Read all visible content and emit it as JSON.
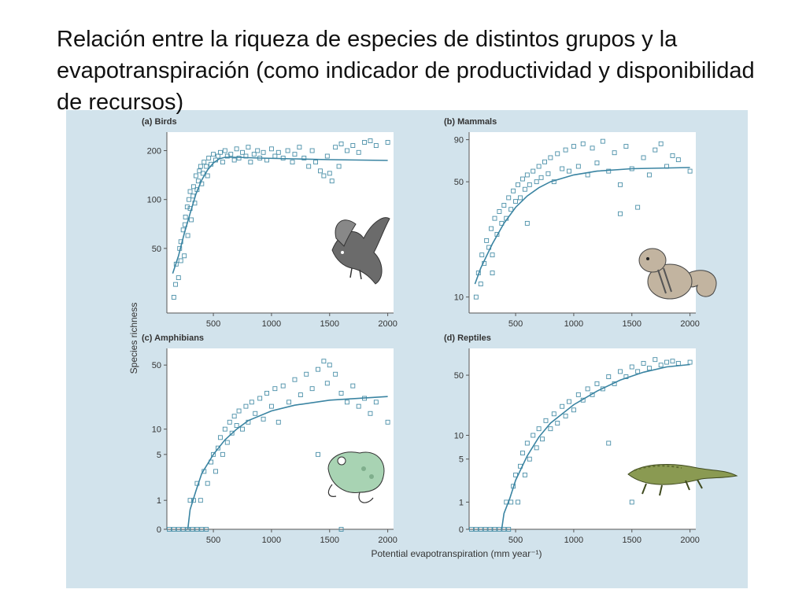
{
  "slide": {
    "title": "Relación entre la riqueza de especies de distintos grupos y la evapotranspiración (como indicador de productividad y disponibilidad de recursos)"
  },
  "figure": {
    "ylabel": "Species richness",
    "xlabel": "Potential evapotranspiration (mm year⁻¹)",
    "colors": {
      "panel_bg": "#d2e3ec",
      "plot_bg": "#ffffff",
      "marker": "#4a8fa8",
      "curve": "#3a84a2",
      "axis": "#555555",
      "text": "#333333"
    }
  },
  "chart_data": [
    {
      "id": "birds",
      "type": "scatter",
      "title": "(a) Birds",
      "xlim": [
        100,
        2050
      ],
      "xticks": [
        500,
        1000,
        1500,
        2000
      ],
      "ylim": [
        20,
        260
      ],
      "yscale": "log",
      "yticks": [
        50,
        100,
        200
      ],
      "icon": "bird-icon",
      "curve": [
        [
          150,
          35
        ],
        [
          200,
          45
        ],
        [
          250,
          62
        ],
        [
          300,
          82
        ],
        [
          350,
          108
        ],
        [
          400,
          132
        ],
        [
          450,
          152
        ],
        [
          500,
          168
        ],
        [
          550,
          178
        ],
        [
          600,
          182
        ],
        [
          700,
          182
        ],
        [
          900,
          180
        ],
        [
          1200,
          178
        ],
        [
          1500,
          176
        ],
        [
          2000,
          174
        ]
      ],
      "points": [
        [
          160,
          25
        ],
        [
          175,
          30
        ],
        [
          180,
          40
        ],
        [
          200,
          33
        ],
        [
          210,
          50
        ],
        [
          220,
          55
        ],
        [
          220,
          42
        ],
        [
          240,
          65
        ],
        [
          250,
          45
        ],
        [
          255,
          70
        ],
        [
          260,
          78
        ],
        [
          275,
          90
        ],
        [
          280,
          60
        ],
        [
          290,
          100
        ],
        [
          300,
          88
        ],
        [
          300,
          112
        ],
        [
          310,
          75
        ],
        [
          325,
          105
        ],
        [
          330,
          120
        ],
        [
          340,
          95
        ],
        [
          350,
          140
        ],
        [
          360,
          115
        ],
        [
          370,
          130
        ],
        [
          380,
          150
        ],
        [
          390,
          160
        ],
        [
          400,
          125
        ],
        [
          410,
          145
        ],
        [
          420,
          170
        ],
        [
          440,
          160
        ],
        [
          450,
          140
        ],
        [
          460,
          180
        ],
        [
          480,
          165
        ],
        [
          500,
          190
        ],
        [
          520,
          175
        ],
        [
          540,
          185
        ],
        [
          560,
          195
        ],
        [
          580,
          170
        ],
        [
          600,
          200
        ],
        [
          620,
          185
        ],
        [
          650,
          190
        ],
        [
          680,
          175
        ],
        [
          700,
          205
        ],
        [
          720,
          180
        ],
        [
          750,
          195
        ],
        [
          780,
          185
        ],
        [
          800,
          210
        ],
        [
          820,
          170
        ],
        [
          850,
          190
        ],
        [
          880,
          200
        ],
        [
          900,
          180
        ],
        [
          930,
          195
        ],
        [
          960,
          175
        ],
        [
          1000,
          205
        ],
        [
          1030,
          185
        ],
        [
          1060,
          195
        ],
        [
          1100,
          180
        ],
        [
          1140,
          200
        ],
        [
          1180,
          170
        ],
        [
          1200,
          190
        ],
        [
          1240,
          210
        ],
        [
          1280,
          180
        ],
        [
          1320,
          160
        ],
        [
          1350,
          200
        ],
        [
          1380,
          170
        ],
        [
          1420,
          150
        ],
        [
          1450,
          140
        ],
        [
          1480,
          185
        ],
        [
          1500,
          145
        ],
        [
          1520,
          130
        ],
        [
          1550,
          210
        ],
        [
          1580,
          160
        ],
        [
          1600,
          220
        ],
        [
          1650,
          200
        ],
        [
          1700,
          215
        ],
        [
          1750,
          195
        ],
        [
          1800,
          225
        ],
        [
          1850,
          230
        ],
        [
          1900,
          215
        ],
        [
          2000,
          225
        ]
      ]
    },
    {
      "id": "mammals",
      "type": "scatter",
      "title": "(b) Mammals",
      "xlim": [
        100,
        2050
      ],
      "xticks": [
        500,
        1000,
        1500,
        2000
      ],
      "ylim": [
        8,
        100
      ],
      "yscale": "log",
      "yticks": [
        10,
        50,
        90
      ],
      "icon": "chipmunk-icon",
      "curve": [
        [
          150,
          12
        ],
        [
          200,
          15
        ],
        [
          300,
          21
        ],
        [
          400,
          28
        ],
        [
          500,
          35
        ],
        [
          600,
          41
        ],
        [
          700,
          46
        ],
        [
          800,
          50
        ],
        [
          1000,
          55
        ],
        [
          1200,
          58
        ],
        [
          1500,
          60
        ],
        [
          2000,
          61
        ]
      ],
      "points": [
        [
          160,
          10
        ],
        [
          180,
          14
        ],
        [
          200,
          12
        ],
        [
          210,
          18
        ],
        [
          230,
          16
        ],
        [
          250,
          22
        ],
        [
          270,
          20
        ],
        [
          290,
          26
        ],
        [
          300,
          18
        ],
        [
          320,
          30
        ],
        [
          340,
          24
        ],
        [
          360,
          33
        ],
        [
          380,
          28
        ],
        [
          400,
          36
        ],
        [
          420,
          30
        ],
        [
          440,
          40
        ],
        [
          460,
          34
        ],
        [
          480,
          44
        ],
        [
          500,
          38
        ],
        [
          520,
          48
        ],
        [
          540,
          40
        ],
        [
          560,
          52
        ],
        [
          580,
          45
        ],
        [
          600,
          55
        ],
        [
          620,
          48
        ],
        [
          650,
          58
        ],
        [
          680,
          50
        ],
        [
          700,
          62
        ],
        [
          720,
          53
        ],
        [
          750,
          66
        ],
        [
          780,
          56
        ],
        [
          800,
          70
        ],
        [
          830,
          50
        ],
        [
          860,
          74
        ],
        [
          900,
          60
        ],
        [
          930,
          78
        ],
        [
          960,
          58
        ],
        [
          1000,
          82
        ],
        [
          1040,
          62
        ],
        [
          1080,
          85
        ],
        [
          1120,
          55
        ],
        [
          1160,
          80
        ],
        [
          1200,
          65
        ],
        [
          1250,
          88
        ],
        [
          1300,
          58
        ],
        [
          1350,
          75
        ],
        [
          1400,
          48
        ],
        [
          1450,
          82
        ],
        [
          1500,
          60
        ],
        [
          1550,
          35
        ],
        [
          1600,
          70
        ],
        [
          1650,
          55
        ],
        [
          1700,
          78
        ],
        [
          1750,
          85
        ],
        [
          1800,
          62
        ],
        [
          1850,
          72
        ],
        [
          1900,
          68
        ],
        [
          2000,
          58
        ],
        [
          600,
          28
        ],
        [
          1400,
          32
        ],
        [
          300,
          14
        ]
      ]
    },
    {
      "id": "amphibians",
      "type": "scatter",
      "title": "(c) Amphibians",
      "xlim": [
        100,
        2050
      ],
      "xticks": [
        500,
        1000,
        1500,
        2000
      ],
      "ylim": [
        0,
        75
      ],
      "yscale": "log1p",
      "yticks": [
        0,
        1,
        5,
        10,
        50
      ],
      "icon": "frog-icon",
      "curve": [
        [
          280,
          0
        ],
        [
          300,
          0.6
        ],
        [
          350,
          1.5
        ],
        [
          400,
          2.8
        ],
        [
          500,
          5
        ],
        [
          600,
          7.5
        ],
        [
          700,
          10
        ],
        [
          800,
          12.5
        ],
        [
          1000,
          16
        ],
        [
          1200,
          18.5
        ],
        [
          1500,
          21
        ],
        [
          2000,
          23
        ]
      ],
      "points": [
        [
          120,
          0
        ],
        [
          160,
          0
        ],
        [
          200,
          0
        ],
        [
          240,
          0
        ],
        [
          280,
          0
        ],
        [
          320,
          0
        ],
        [
          360,
          0
        ],
        [
          400,
          0
        ],
        [
          440,
          0
        ],
        [
          300,
          1
        ],
        [
          330,
          1
        ],
        [
          360,
          2
        ],
        [
          390,
          1
        ],
        [
          420,
          3
        ],
        [
          450,
          2
        ],
        [
          480,
          4
        ],
        [
          500,
          5
        ],
        [
          520,
          3
        ],
        [
          540,
          6
        ],
        [
          560,
          8
        ],
        [
          580,
          5
        ],
        [
          600,
          10
        ],
        [
          620,
          7
        ],
        [
          640,
          12
        ],
        [
          660,
          9
        ],
        [
          680,
          14
        ],
        [
          700,
          11
        ],
        [
          720,
          16
        ],
        [
          750,
          10
        ],
        [
          780,
          18
        ],
        [
          800,
          12
        ],
        [
          830,
          20
        ],
        [
          860,
          15
        ],
        [
          900,
          22
        ],
        [
          930,
          13
        ],
        [
          960,
          25
        ],
        [
          1000,
          18
        ],
        [
          1030,
          28
        ],
        [
          1060,
          12
        ],
        [
          1100,
          30
        ],
        [
          1150,
          20
        ],
        [
          1200,
          35
        ],
        [
          1250,
          24
        ],
        [
          1300,
          40
        ],
        [
          1350,
          28
        ],
        [
          1400,
          45
        ],
        [
          1450,
          55
        ],
        [
          1480,
          32
        ],
        [
          1500,
          50
        ],
        [
          1550,
          40
        ],
        [
          1600,
          25
        ],
        [
          1650,
          20
        ],
        [
          1700,
          30
        ],
        [
          1750,
          18
        ],
        [
          1800,
          22
        ],
        [
          1850,
          15
        ],
        [
          1900,
          20
        ],
        [
          2000,
          12
        ],
        [
          1400,
          5
        ],
        [
          1600,
          0
        ]
      ]
    },
    {
      "id": "reptiles",
      "type": "scatter",
      "title": "(d) Reptiles",
      "xlim": [
        100,
        2050
      ],
      "xticks": [
        500,
        1000,
        1500,
        2000
      ],
      "ylim": [
        0,
        100
      ],
      "yscale": "log1p",
      "yticks": [
        0,
        1,
        5,
        10,
        50
      ],
      "icon": "crocodile-icon",
      "curve": [
        [
          380,
          0
        ],
        [
          400,
          0.5
        ],
        [
          450,
          1.2
        ],
        [
          500,
          2.5
        ],
        [
          600,
          5.5
        ],
        [
          700,
          9.5
        ],
        [
          800,
          14
        ],
        [
          1000,
          23
        ],
        [
          1200,
          33
        ],
        [
          1400,
          44
        ],
        [
          1600,
          54
        ],
        [
          1800,
          62
        ],
        [
          2000,
          66
        ]
      ],
      "points": [
        [
          120,
          0
        ],
        [
          160,
          0
        ],
        [
          200,
          0
        ],
        [
          240,
          0
        ],
        [
          280,
          0
        ],
        [
          320,
          0
        ],
        [
          360,
          0
        ],
        [
          400,
          0
        ],
        [
          420,
          1
        ],
        [
          440,
          0
        ],
        [
          460,
          1
        ],
        [
          480,
          2
        ],
        [
          500,
          3
        ],
        [
          520,
          1
        ],
        [
          540,
          4
        ],
        [
          560,
          6
        ],
        [
          580,
          3
        ],
        [
          600,
          8
        ],
        [
          620,
          5
        ],
        [
          650,
          10
        ],
        [
          680,
          7
        ],
        [
          700,
          12
        ],
        [
          730,
          9
        ],
        [
          760,
          15
        ],
        [
          800,
          12
        ],
        [
          830,
          18
        ],
        [
          860,
          14
        ],
        [
          900,
          22
        ],
        [
          930,
          17
        ],
        [
          960,
          25
        ],
        [
          1000,
          20
        ],
        [
          1040,
          30
        ],
        [
          1080,
          26
        ],
        [
          1120,
          35
        ],
        [
          1160,
          30
        ],
        [
          1200,
          40
        ],
        [
          1250,
          35
        ],
        [
          1300,
          48
        ],
        [
          1350,
          40
        ],
        [
          1400,
          55
        ],
        [
          1450,
          48
        ],
        [
          1500,
          62
        ],
        [
          1550,
          55
        ],
        [
          1600,
          68
        ],
        [
          1650,
          60
        ],
        [
          1700,
          75
        ],
        [
          1750,
          65
        ],
        [
          1800,
          70
        ],
        [
          1850,
          72
        ],
        [
          1900,
          68
        ],
        [
          2000,
          70
        ],
        [
          1300,
          8
        ],
        [
          1500,
          1
        ]
      ]
    }
  ]
}
